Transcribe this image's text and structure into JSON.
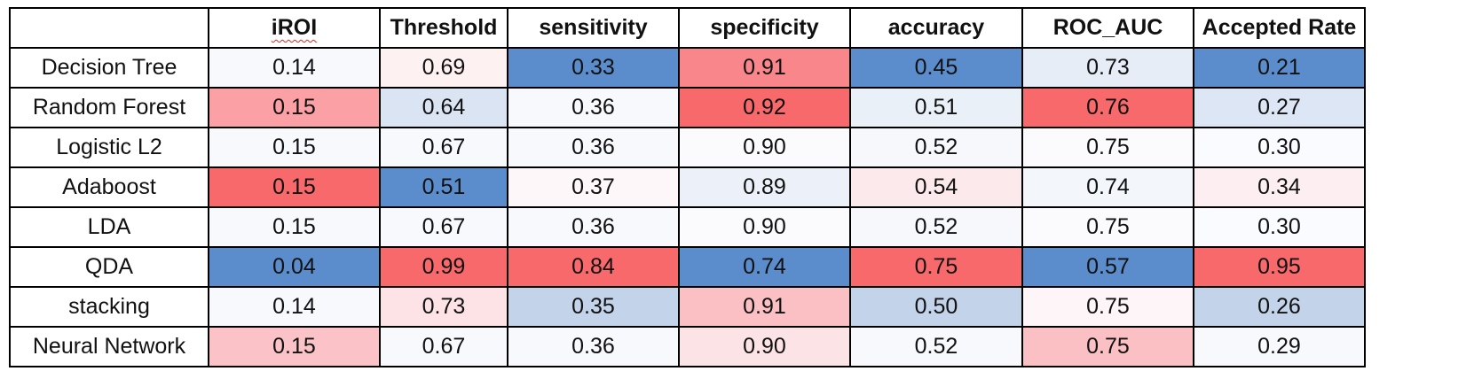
{
  "table": {
    "columns": [
      "iROI",
      "Threshold",
      "sensitivity",
      "specificity",
      "accuracy",
      "ROC_AUC",
      "Accepted Rate"
    ],
    "spellcheck_flagged_column": "iROI",
    "rows": [
      {
        "label": "Decision Tree",
        "values": [
          "0.14",
          "0.69",
          "0.33",
          "0.91",
          "0.45",
          "0.73",
          "0.21"
        ],
        "colors": [
          "#f7f9fd",
          "#fdf1f2",
          "#5b8ccb",
          "#f8868b",
          "#5b8ccb",
          "#e6edf7",
          "#5b8ccb"
        ]
      },
      {
        "label": "Random Forest",
        "values": [
          "0.15",
          "0.64",
          "0.36",
          "0.92",
          "0.51",
          "0.76",
          "0.27"
        ],
        "colors": [
          "#fba0a4",
          "#dbe4f3",
          "#f8f9fd",
          "#f8696b",
          "#eaf0f8",
          "#f8696b",
          "#dde6f4"
        ]
      },
      {
        "label": "Logistic L2",
        "values": [
          "0.15",
          "0.67",
          "0.36",
          "0.90",
          "0.52",
          "0.75",
          "0.30"
        ],
        "colors": [
          "#f8f9fd",
          "#f8f9fd",
          "#f8f9fd",
          "#fbfbfe",
          "#f7f8fc",
          "#fbfbfe",
          "#fafbfe"
        ]
      },
      {
        "label": "Adaboost",
        "values": [
          "0.15",
          "0.51",
          "0.37",
          "0.89",
          "0.54",
          "0.74",
          "0.34"
        ],
        "colors": [
          "#f8696b",
          "#5b8ccb",
          "#fdf7f9",
          "#ecf1f9",
          "#fce9ec",
          "#f3f6fb",
          "#fdeff1"
        ]
      },
      {
        "label": "LDA",
        "values": [
          "0.15",
          "0.67",
          "0.36",
          "0.90",
          "0.52",
          "0.75",
          "0.30"
        ],
        "colors": [
          "#f8f9fd",
          "#f8f9fd",
          "#f8f9fd",
          "#fbfbfe",
          "#f7f8fc",
          "#fbfbfe",
          "#fafbfe"
        ]
      },
      {
        "label": "QDA",
        "values": [
          "0.04",
          "0.99",
          "0.84",
          "0.74",
          "0.75",
          "0.57",
          "0.95"
        ],
        "colors": [
          "#5b8ccb",
          "#f8696b",
          "#f8696b",
          "#5b8ccb",
          "#f8696b",
          "#5b8ccb",
          "#f8696b"
        ]
      },
      {
        "label": "stacking",
        "values": [
          "0.14",
          "0.73",
          "0.35",
          "0.91",
          "0.50",
          "0.75",
          "0.26"
        ],
        "colors": [
          "#f8f9fd",
          "#fde3e6",
          "#c3d3ea",
          "#fac0c4",
          "#c3d3ea",
          "#fdf5f7",
          "#c3d3ea"
        ]
      },
      {
        "label": "Neural Network",
        "values": [
          "0.15",
          "0.67",
          "0.36",
          "0.90",
          "0.52",
          "0.75",
          "0.29"
        ],
        "colors": [
          "#fbc3c7",
          "#f8f9fd",
          "#f8f9fd",
          "#fce3e6",
          "#f8f9fd",
          "#fbc0c4",
          "#f8f9fd"
        ]
      }
    ]
  }
}
